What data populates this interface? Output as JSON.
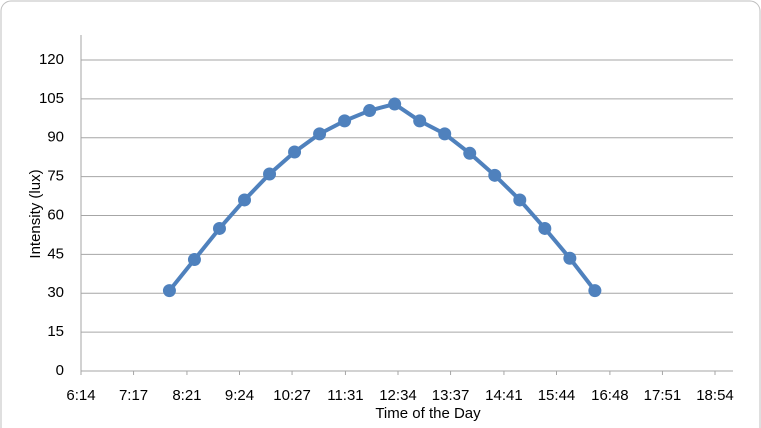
{
  "chart_data": {
    "type": "line",
    "xlabel": "Time of the Day",
    "ylabel": "Intensity (lux)",
    "x": [
      480,
      510,
      540,
      570,
      600,
      630,
      660,
      690,
      720,
      750,
      780,
      810,
      840,
      870,
      900,
      930,
      960,
      990
    ],
    "series": [
      {
        "name": "Intensity",
        "color": "#4f81bd",
        "values": [
          31,
          43,
          55,
          66,
          76,
          84.5,
          91.5,
          96.5,
          100.5,
          103,
          96.5,
          91.5,
          84,
          75.5,
          66,
          55,
          43.5,
          31
        ]
      }
    ],
    "xlim": [
      374,
      1134
    ],
    "xticks": [
      {
        "value": 374,
        "label": "6:14"
      },
      {
        "value": 437,
        "label": "7:17"
      },
      {
        "value": 501,
        "label": "8:21"
      },
      {
        "value": 564,
        "label": "9:24"
      },
      {
        "value": 627,
        "label": "10:27"
      },
      {
        "value": 691,
        "label": "11:31"
      },
      {
        "value": 754,
        "label": "12:34"
      },
      {
        "value": 817,
        "label": "13:37"
      },
      {
        "value": 881,
        "label": "14:41"
      },
      {
        "value": 944,
        "label": "15:44"
      },
      {
        "value": 1008,
        "label": "16:48"
      },
      {
        "value": 1071,
        "label": "17:51"
      },
      {
        "value": 1134,
        "label": "18:54"
      }
    ],
    "ylim": [
      0,
      120
    ],
    "yticks": [
      0,
      15,
      30,
      45,
      60,
      75,
      90,
      105,
      120
    ],
    "grid": true
  }
}
